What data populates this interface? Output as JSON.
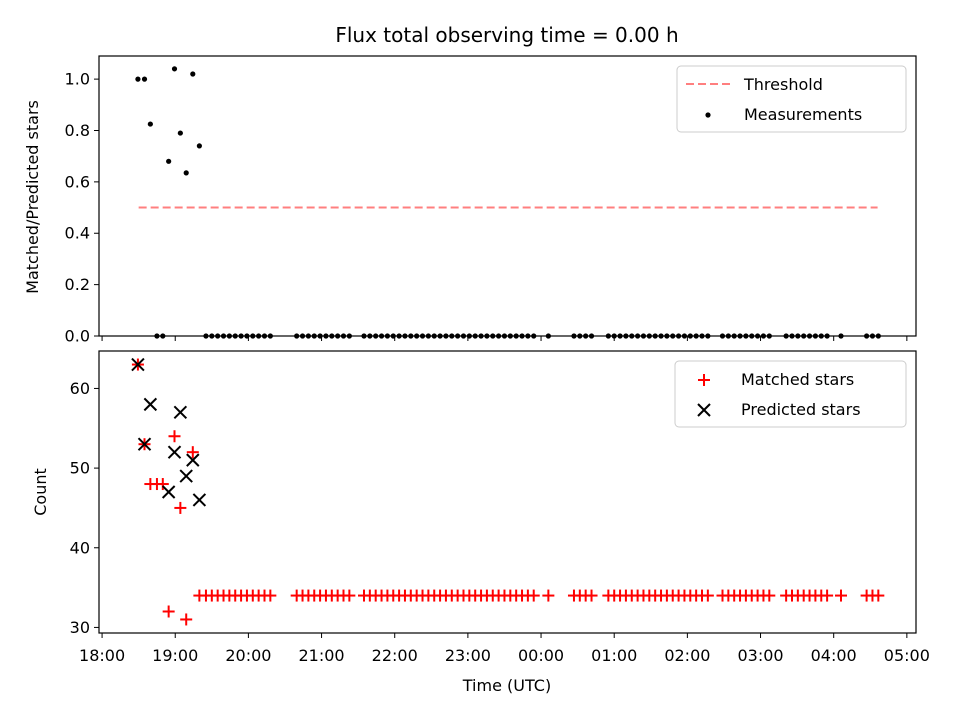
{
  "chart_data": [
    {
      "type": "scatter",
      "title": "Flux total observing time = 0.00 h",
      "xlabel": "",
      "ylabel": "Matched/Predicted stars",
      "xlim": [
        17.958,
        29.125
      ],
      "ylim": [
        0.0,
        1.09
      ],
      "yticks": [
        0.0,
        0.2,
        0.4,
        0.6,
        0.8,
        1.0
      ],
      "ytick_labels": [
        "0.0",
        "0.2",
        "0.4",
        "0.6",
        "0.8",
        "1.0"
      ],
      "xticks": [
        18,
        19,
        20,
        21,
        22,
        23,
        24,
        25,
        26,
        27,
        28,
        29
      ],
      "legend_position": "top-right",
      "series": [
        {
          "name": "Threshold",
          "kind": "line",
          "style": "dashed",
          "color": "#ff7f7f",
          "x": [
            18.5,
            28.6
          ],
          "y": [
            0.5,
            0.5
          ]
        },
        {
          "name": "Measurements",
          "kind": "scatter",
          "marker": "dot",
          "color": "#000000",
          "x": [
            18.49,
            18.58,
            18.66,
            18.91,
            18.99,
            19.07,
            19.15,
            19.24,
            19.33,
            18.75,
            18.83,
            19.42,
            19.5,
            19.58,
            19.66,
            19.74,
            19.82,
            19.9,
            19.98,
            20.06,
            20.14,
            20.22,
            20.3,
            20.66,
            20.74,
            20.82,
            20.9,
            20.98,
            21.06,
            21.14,
            21.22,
            21.3,
            21.38,
            21.58,
            21.66,
            21.74,
            21.82,
            21.9,
            21.98,
            22.06,
            22.14,
            22.22,
            22.3,
            22.38,
            22.46,
            22.54,
            22.62,
            22.7,
            22.78,
            22.86,
            22.94,
            23.02,
            23.1,
            23.18,
            23.26,
            23.34,
            23.42,
            23.5,
            23.58,
            23.66,
            23.74,
            23.82,
            23.9,
            24.1,
            24.45,
            24.53,
            24.61,
            24.69,
            24.92,
            25.0,
            25.08,
            25.16,
            25.24,
            25.32,
            25.4,
            25.48,
            25.56,
            25.64,
            25.72,
            25.8,
            25.88,
            25.96,
            26.04,
            26.12,
            26.2,
            26.28,
            26.48,
            26.56,
            26.64,
            26.72,
            26.8,
            26.88,
            26.96,
            27.04,
            27.12,
            27.35,
            27.43,
            27.51,
            27.59,
            27.67,
            27.75,
            27.83,
            27.91,
            28.1,
            28.45,
            28.53,
            28.61
          ],
          "y": [
            1.0,
            1.0,
            0.825,
            0.68,
            1.04,
            0.79,
            0.635,
            1.02,
            0.74,
            0.0,
            0.0,
            0.0,
            0.0,
            0.0,
            0.0,
            0.0,
            0.0,
            0.0,
            0.0,
            0.0,
            0.0,
            0.0,
            0.0,
            0.0,
            0.0,
            0.0,
            0.0,
            0.0,
            0.0,
            0.0,
            0.0,
            0.0,
            0.0,
            0.0,
            0.0,
            0.0,
            0.0,
            0.0,
            0.0,
            0.0,
            0.0,
            0.0,
            0.0,
            0.0,
            0.0,
            0.0,
            0.0,
            0.0,
            0.0,
            0.0,
            0.0,
            0.0,
            0.0,
            0.0,
            0.0,
            0.0,
            0.0,
            0.0,
            0.0,
            0.0,
            0.0,
            0.0,
            0.0,
            0.0,
            0.0,
            0.0,
            0.0,
            0.0,
            0.0,
            0.0,
            0.0,
            0.0,
            0.0,
            0.0,
            0.0,
            0.0,
            0.0,
            0.0,
            0.0,
            0.0,
            0.0,
            0.0,
            0.0,
            0.0,
            0.0,
            0.0,
            0.0,
            0.0,
            0.0,
            0.0,
            0.0,
            0.0,
            0.0,
            0.0,
            0.0,
            0.0,
            0.0,
            0.0,
            0.0,
            0.0,
            0.0,
            0.0,
            0.0,
            0.0,
            0.0,
            0.0,
            0.0
          ]
        }
      ]
    },
    {
      "type": "scatter",
      "title": "",
      "xlabel": "Time (UTC)",
      "ylabel": "Count",
      "xlim": [
        17.958,
        29.125
      ],
      "ylim": [
        29.3,
        64.7
      ],
      "yticks": [
        30,
        40,
        50,
        60
      ],
      "ytick_labels": [
        "30",
        "40",
        "50",
        "60"
      ],
      "xticks": [
        18,
        19,
        20,
        21,
        22,
        23,
        24,
        25,
        26,
        27,
        28,
        29
      ],
      "xtick_labels": [
        "18:00",
        "19:00",
        "20:00",
        "21:00",
        "22:00",
        "23:00",
        "00:00",
        "01:00",
        "02:00",
        "03:00",
        "04:00",
        "05:00"
      ],
      "legend_position": "top-right",
      "series": [
        {
          "name": "Matched stars",
          "kind": "scatter",
          "marker": "plus",
          "color": "#ff0000",
          "x": [
            18.49,
            18.58,
            18.66,
            18.75,
            18.83,
            18.91,
            18.99,
            19.07,
            19.15,
            19.24,
            19.33,
            19.42,
            19.5,
            19.58,
            19.66,
            19.74,
            19.82,
            19.9,
            19.98,
            20.06,
            20.14,
            20.22,
            20.3,
            20.66,
            20.74,
            20.82,
            20.9,
            20.98,
            21.06,
            21.14,
            21.22,
            21.3,
            21.38,
            21.58,
            21.66,
            21.74,
            21.82,
            21.9,
            21.98,
            22.06,
            22.14,
            22.22,
            22.3,
            22.38,
            22.46,
            22.54,
            22.62,
            22.7,
            22.78,
            22.86,
            22.94,
            23.02,
            23.1,
            23.18,
            23.26,
            23.34,
            23.42,
            23.5,
            23.58,
            23.66,
            23.74,
            23.82,
            23.9,
            24.1,
            24.45,
            24.53,
            24.61,
            24.69,
            24.92,
            25.0,
            25.08,
            25.16,
            25.24,
            25.32,
            25.4,
            25.48,
            25.56,
            25.64,
            25.72,
            25.8,
            25.88,
            25.96,
            26.04,
            26.12,
            26.2,
            26.28,
            26.48,
            26.56,
            26.64,
            26.72,
            26.8,
            26.88,
            26.96,
            27.04,
            27.12,
            27.35,
            27.43,
            27.51,
            27.59,
            27.67,
            27.75,
            27.83,
            27.91,
            28.1,
            28.45,
            28.53,
            28.61
          ],
          "y": [
            63,
            53,
            48,
            48,
            48,
            32,
            54,
            45,
            31,
            52,
            34,
            34,
            34,
            34,
            34,
            34,
            34,
            34,
            34,
            34,
            34,
            34,
            34,
            34,
            34,
            34,
            34,
            34,
            34,
            34,
            34,
            34,
            34,
            34,
            34,
            34,
            34,
            34,
            34,
            34,
            34,
            34,
            34,
            34,
            34,
            34,
            34,
            34,
            34,
            34,
            34,
            34,
            34,
            34,
            34,
            34,
            34,
            34,
            34,
            34,
            34,
            34,
            34,
            34,
            34,
            34,
            34,
            34,
            34,
            34,
            34,
            34,
            34,
            34,
            34,
            34,
            34,
            34,
            34,
            34,
            34,
            34,
            34,
            34,
            34,
            34,
            34,
            34,
            34,
            34,
            34,
            34,
            34,
            34,
            34,
            34,
            34,
            34,
            34,
            34,
            34,
            34,
            34,
            34,
            34,
            34,
            34
          ]
        },
        {
          "name": "Predicted stars",
          "kind": "scatter",
          "marker": "x",
          "color": "#000000",
          "x": [
            18.49,
            18.58,
            18.66,
            18.91,
            18.99,
            19.07,
            19.15,
            19.24,
            19.33
          ],
          "y": [
            63,
            53,
            58,
            47,
            52,
            57,
            49,
            51,
            46
          ]
        }
      ]
    }
  ]
}
